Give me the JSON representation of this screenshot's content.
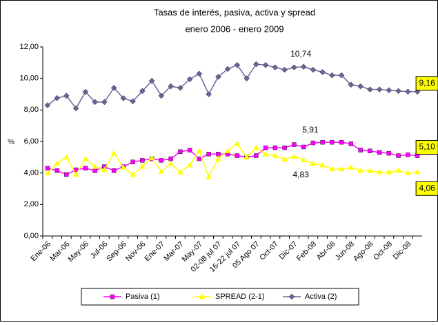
{
  "chart_data": {
    "type": "line",
    "title": "Tasas de interés, pasiva, activa y spread",
    "subtitle": "enero 2006 - enero 2009",
    "y_label": "%",
    "categories": [
      "Ene-06",
      null,
      "Mar-06",
      null,
      "May-06",
      null,
      "Jul-06",
      null,
      "Sep-06",
      null,
      "Nov-06",
      null,
      "Ene-07",
      null,
      "Mar-07",
      null,
      "May-07",
      null,
      "02-08 jul 07",
      null,
      "16-22 jul 07",
      null,
      "05 Ago 07",
      null,
      "Oct-07",
      null,
      "Dic-07",
      null,
      "Feb-08",
      null,
      "Abr-08",
      null,
      "Jun-08",
      null,
      "Ago-08",
      null,
      "Oct-08",
      null,
      "Dic-08",
      null
    ],
    "series": [
      {
        "name": "Pasiva (1)",
        "color": "#ff00ff",
        "marker": "square",
        "values": [
          4.3,
          4.15,
          3.9,
          4.2,
          4.3,
          4.15,
          4.4,
          4.15,
          4.4,
          4.7,
          4.8,
          4.9,
          4.8,
          4.9,
          5.35,
          5.45,
          4.9,
          5.2,
          5.2,
          5.2,
          5.1,
          5.0,
          5.1,
          5.6,
          5.6,
          5.6,
          5.8,
          5.65,
          5.91,
          5.95,
          5.95,
          5.95,
          5.85,
          5.45,
          5.4,
          5.3,
          5.25,
          5.1,
          5.15,
          5.1
        ],
        "value_labels": [
          null,
          null,
          null,
          null,
          null,
          null,
          null,
          null,
          null,
          null,
          null,
          null,
          null,
          null,
          null,
          null,
          null,
          null,
          null,
          null,
          null,
          null,
          null,
          null,
          null,
          null,
          null,
          null,
          "5,91",
          null,
          null,
          null,
          null,
          null,
          null,
          null,
          null,
          null,
          null,
          "5,10"
        ]
      },
      {
        "name": "SPREAD (2-1)",
        "color": "#ffff00",
        "marker": "triangle",
        "values": [
          4.0,
          4.6,
          5.0,
          3.9,
          4.9,
          4.4,
          4.2,
          5.25,
          4.35,
          3.9,
          4.4,
          4.95,
          4.1,
          4.6,
          4.05,
          4.5,
          5.4,
          3.75,
          4.9,
          5.4,
          5.85,
          5.0,
          5.6,
          5.2,
          5.1,
          4.85,
          5.05,
          4.83,
          4.6,
          4.5,
          4.25,
          4.25,
          4.35,
          4.15,
          4.15,
          4.05,
          4.05,
          4.15,
          4.0,
          4.06
        ],
        "value_labels": [
          null,
          null,
          null,
          null,
          null,
          null,
          null,
          null,
          null,
          null,
          null,
          null,
          null,
          null,
          null,
          null,
          null,
          null,
          null,
          null,
          null,
          null,
          null,
          null,
          null,
          null,
          null,
          "4,83",
          null,
          null,
          null,
          null,
          null,
          null,
          null,
          null,
          null,
          null,
          null,
          "4,06"
        ]
      },
      {
        "name": "Activa (2)",
        "color": "#666699",
        "marker": "diamond",
        "values": [
          8.3,
          8.75,
          8.9,
          8.1,
          9.15,
          8.5,
          8.5,
          9.4,
          8.75,
          8.55,
          9.2,
          9.85,
          8.9,
          9.5,
          9.4,
          9.95,
          10.3,
          9.0,
          10.1,
          10.6,
          10.85,
          10.0,
          10.9,
          10.85,
          10.7,
          10.55,
          10.7,
          10.74,
          10.55,
          10.4,
          10.2,
          10.2,
          9.6,
          9.5,
          9.3,
          9.3,
          9.25,
          9.2,
          9.16,
          9.16
        ],
        "value_labels": [
          null,
          null,
          null,
          null,
          null,
          null,
          null,
          null,
          null,
          null,
          null,
          null,
          null,
          null,
          null,
          null,
          null,
          null,
          null,
          null,
          null,
          null,
          null,
          null,
          null,
          null,
          null,
          "10,74",
          null,
          null,
          null,
          null,
          null,
          null,
          null,
          null,
          null,
          null,
          null,
          "9,16"
        ]
      }
    ],
    "ylim": [
      0,
      12
    ],
    "yticks": [
      {
        "value": 0,
        "label": "0,00"
      },
      {
        "value": 2,
        "label": "2,00"
      },
      {
        "value": 4,
        "label": "4,00"
      },
      {
        "value": 6,
        "label": "6,00"
      },
      {
        "value": 8,
        "label": "8,00"
      },
      {
        "value": 10,
        "label": "10,00"
      },
      {
        "value": 12,
        "label": "12,00"
      }
    ],
    "grid": false,
    "legend": "bottom"
  }
}
